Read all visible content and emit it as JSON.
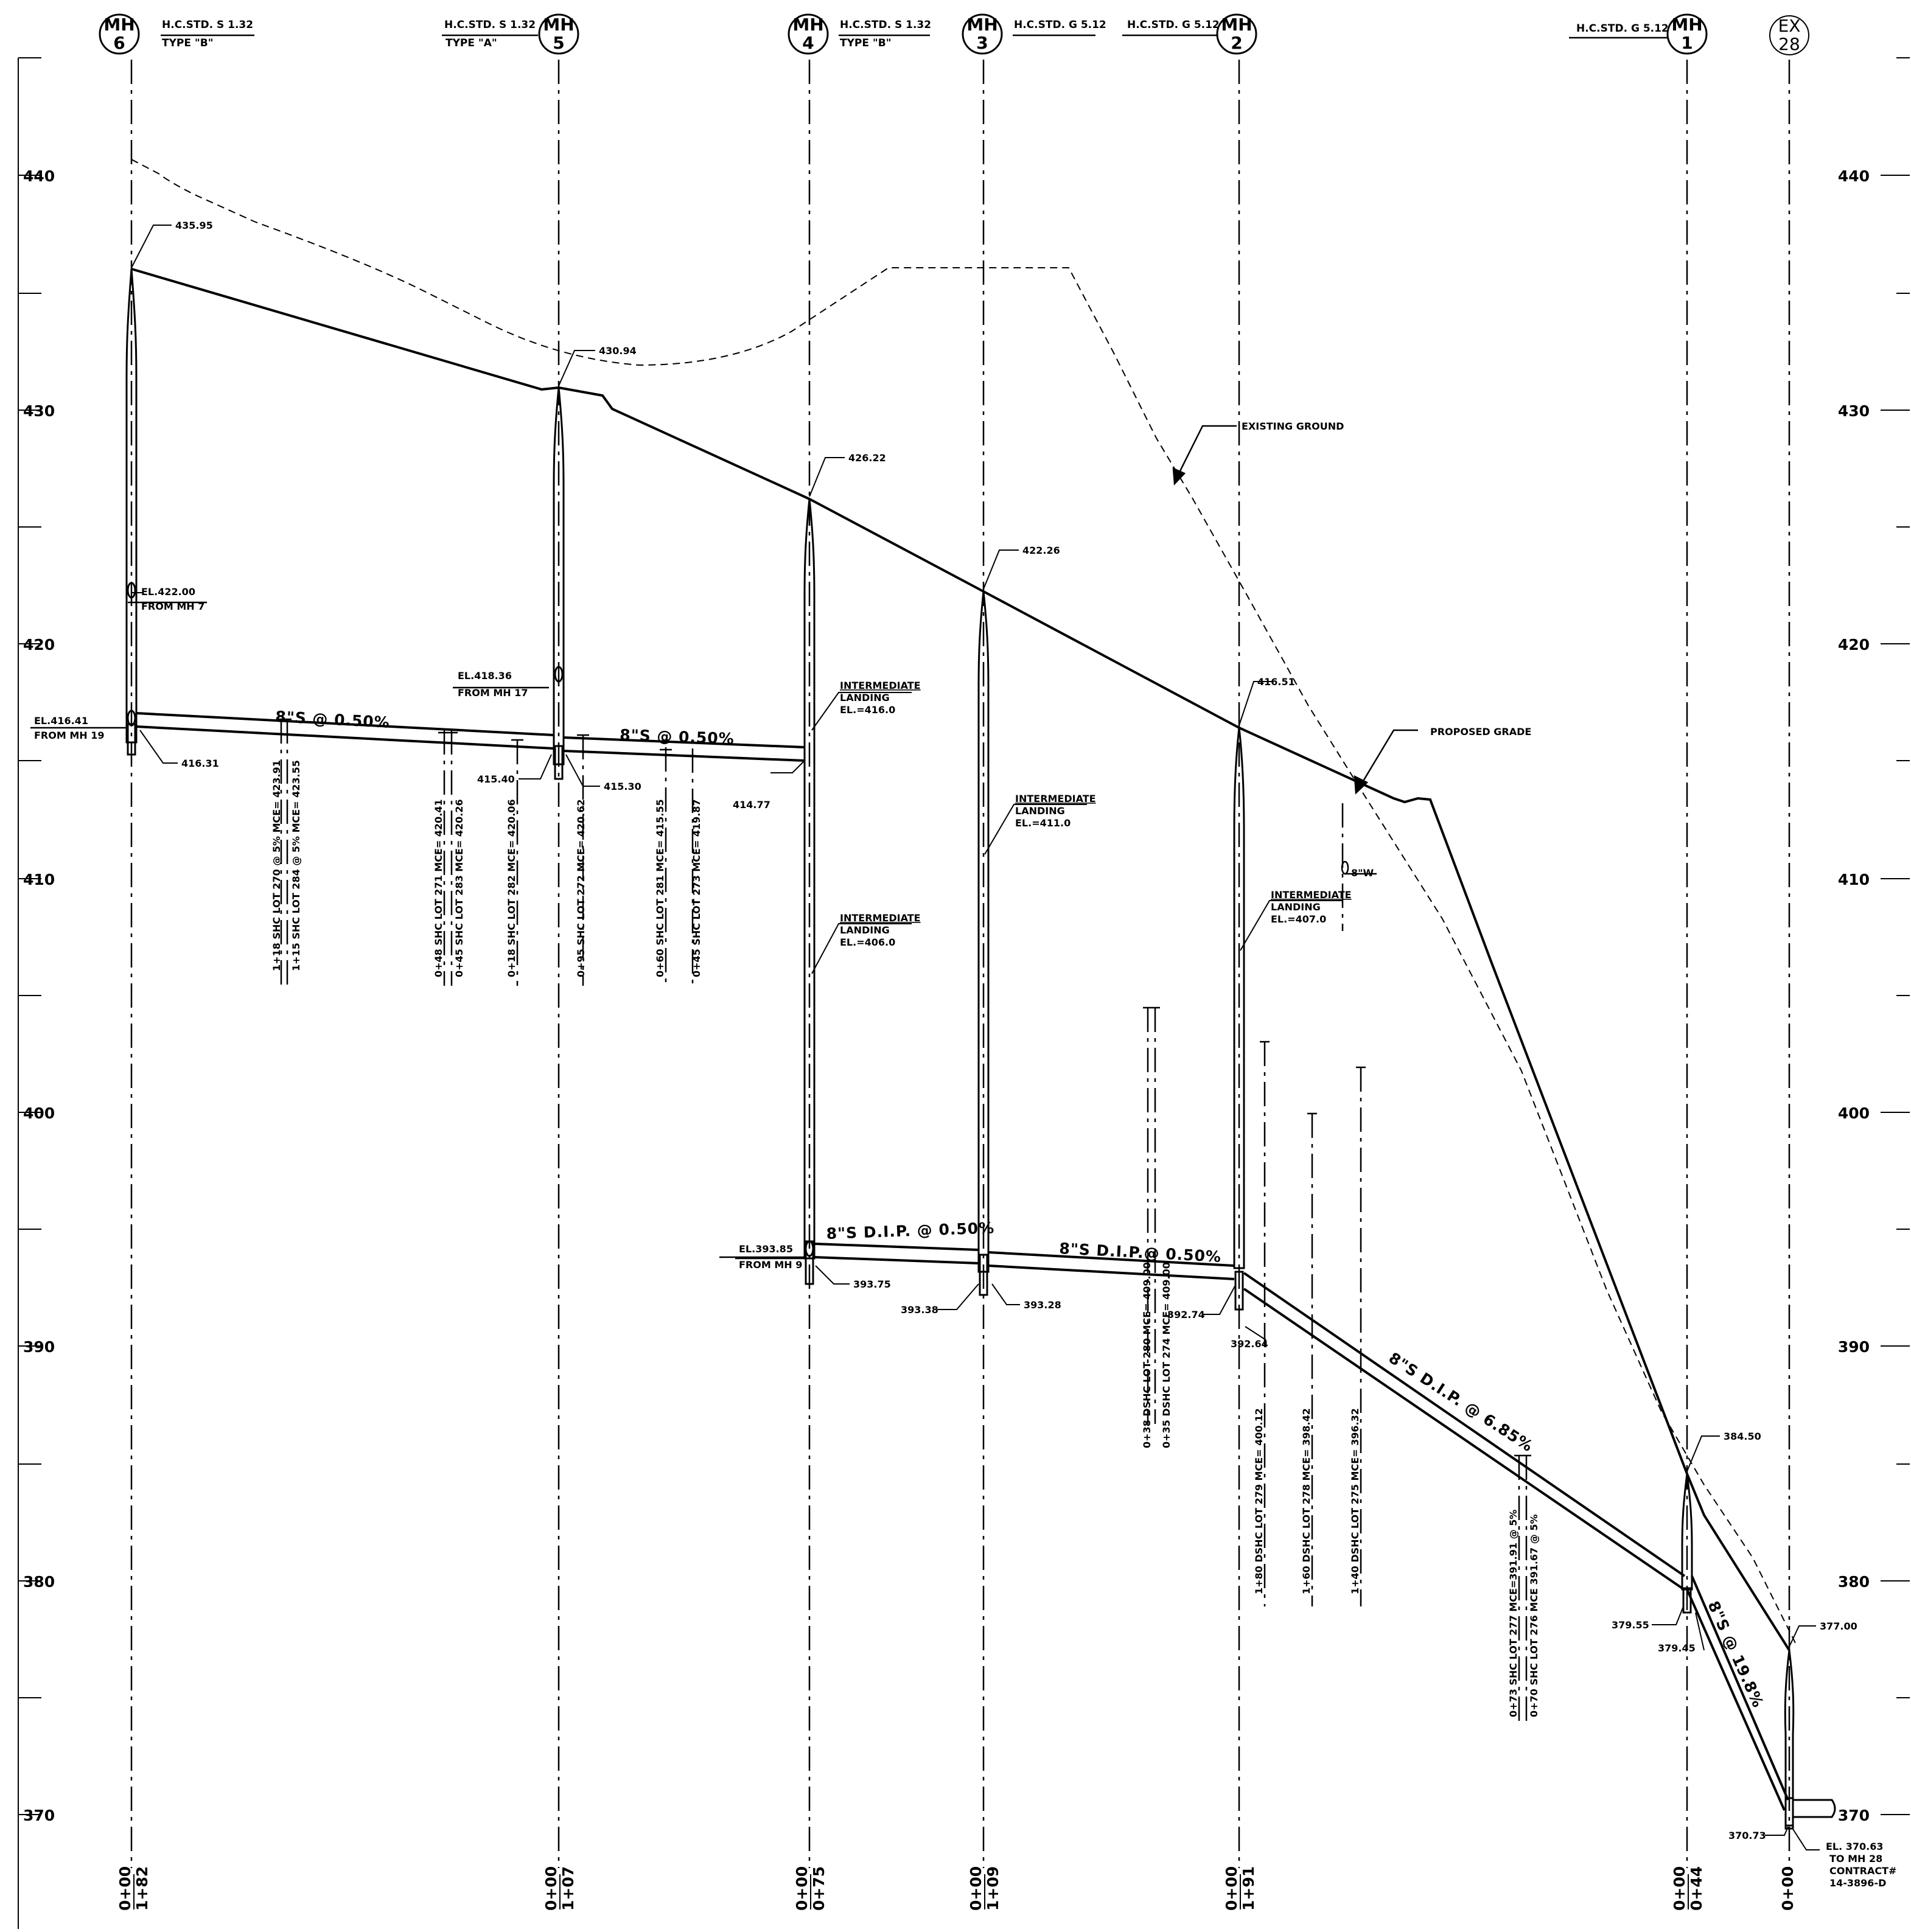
{
  "axis": {
    "ticks": [
      "440",
      "430",
      "420",
      "410",
      "400",
      "390",
      "380",
      "370"
    ]
  },
  "manholes": [
    {
      "id": "mh6",
      "top": "MH",
      "bottom": "6",
      "std": "H.C.STD. S 1.32",
      "type": "TYPE \"B\"",
      "station1": "0+00",
      "station2": "1+82"
    },
    {
      "id": "mh5",
      "top": "MH",
      "bottom": "5",
      "std": "H.C.STD. S 1.32",
      "type": "TYPE \"A\"",
      "station1": "0+00",
      "station2": "1+07"
    },
    {
      "id": "mh4",
      "top": "MH",
      "bottom": "4",
      "std": "H.C.STD. S 1.32",
      "type": "TYPE \"B\"",
      "station1": "0+00",
      "station2": "0+75"
    },
    {
      "id": "mh3",
      "top": "MH",
      "bottom": "3",
      "std": "H.C.STD. G 5.12",
      "type": "",
      "station1": "0+00",
      "station2": "1+09"
    },
    {
      "id": "mh2",
      "top": "MH",
      "bottom": "2",
      "std": "H.C.STD. G 5.12",
      "type": "",
      "station1": "0+00",
      "station2": "1+91"
    },
    {
      "id": "mh1",
      "top": "MH",
      "bottom": "1",
      "std": "H.C.STD. G 5.12",
      "type": "",
      "station1": "0+00",
      "station2": "0+44"
    },
    {
      "id": "ex28",
      "top": "EX",
      "bottom": "28",
      "std": "",
      "type": "",
      "station1": "0+00",
      "station2": ""
    }
  ],
  "rims": [
    "435.95",
    "430.94",
    "426.22",
    "422.26",
    "416.51",
    "384.50",
    "377.00"
  ],
  "inverts": [
    "416.31",
    "415.40",
    "415.30",
    "414.77",
    "393.75",
    "393.38",
    "393.28",
    "392.74",
    "392.64",
    "379.55",
    "379.45",
    "370.73"
  ],
  "notes": {
    "from_mh7_el": "EL.422.00",
    "from_mh7": "FROM MH 7",
    "from_mh19_el": "EL.416.41",
    "from_mh19": "FROM MH 19",
    "from_mh17_el": "EL.418.36",
    "from_mh17": "FROM MH 17",
    "from_mh9_el": "EL.393.85",
    "from_mh9": "FROM MH 9",
    "existing_ground": "EXISTING GROUND",
    "proposed_grade": "PROPOSED GRADE",
    "water": "8\"W",
    "ex_el": "EL. 370.63",
    "ex_to": "TO MH 28",
    "ex_contract": "CONTRACT#",
    "ex_contract_no": "14-3896-D"
  },
  "landings": [
    {
      "t1": "INTERMEDIATE",
      "t2": "LANDING",
      "t3": "EL.=416.0"
    },
    {
      "t1": "INTERMEDIATE",
      "t2": "LANDING",
      "t3": "EL.=406.0"
    },
    {
      "t1": "INTERMEDIATE",
      "t2": "LANDING",
      "t3": "EL.=411.0"
    },
    {
      "t1": "INTERMEDIATE",
      "t2": "LANDING",
      "t3": "EL.=407.0"
    }
  ],
  "pipes": [
    "8\"S @ 0.50%",
    "8\"S @ 0.50%",
    "8\"S D.I.P. @ 0.50%",
    "8\"S D.I.P.@ 0.50%",
    "8\"S D.I.P. @ 6.85%",
    "8\"S @ 19.8%"
  ],
  "services": [
    "1+18 SHC LOT 270 @ 5%  MCE= 423.91",
    "1+15  SHC LOT 284 @ 5%  MCE= 423.55",
    "0+48 SHC LOT 271  MCE= 420.41",
    "0+45 SHC LOT 283  MCE= 420.26",
    "0+18 SHC LOT 282  MCE= 420.06",
    "0+95 SHC LOT 272  MCE= 420.62",
    "0+60 SHC LOT 281  MCE= 415.55",
    "0+45 SHC LOT 273  MCE= 419.87",
    "0+38 DSHC LOT 280  MCE= 409.00",
    "0+35 DSHC LOT 274  MCE= 409.00",
    "1+80 DSHC LOT 279  MCE= 400.12",
    "1+60 DSHC LOT 278  MCE= 398.42",
    "1+40 DSHC LOT 275  MCE= 396.32",
    "0+73 SHC LOT 277  MCE=391.91 @ 5%",
    "0+70 SHC LOT 276 MCE 391.67 @ 5%"
  ],
  "colors": {
    "ink": "#000000",
    "paper": "#ffffff"
  }
}
